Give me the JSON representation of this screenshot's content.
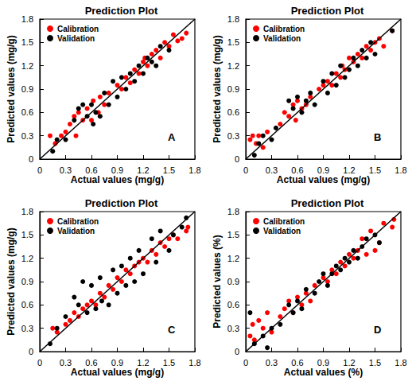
{
  "chart_data": [
    {
      "type": "scatter",
      "title": "Prediction Plot",
      "annotation": "A",
      "x_label": "Actual values (mg/g)",
      "y_label": "Predicted values (mg/g)",
      "xlim": [
        0,
        1.8
      ],
      "ylim": [
        0,
        1.8
      ],
      "xticks": [
        0,
        0.3,
        0.6,
        0.9,
        1.2,
        1.5,
        1.8
      ],
      "yticks": [
        0,
        0.3,
        0.6,
        0.9,
        1.2,
        1.5,
        1.8
      ],
      "grid": false,
      "series": [
        {
          "name": "Calibration",
          "color": "#ff0000",
          "marker": "circle",
          "x": [
            0.12,
            0.18,
            0.25,
            0.3,
            0.35,
            0.4,
            0.42,
            0.45,
            0.5,
            0.55,
            0.6,
            0.62,
            0.68,
            0.7,
            0.75,
            0.8,
            0.9,
            0.95,
            1.0,
            1.05,
            1.1,
            1.15,
            1.2,
            1.22,
            1.25,
            1.3,
            1.35,
            1.4,
            1.45,
            1.5,
            1.55,
            1.6,
            1.65,
            1.7
          ],
          "y": [
            0.3,
            0.2,
            0.3,
            0.35,
            0.45,
            0.55,
            0.3,
            0.6,
            0.5,
            0.65,
            0.5,
            0.75,
            0.6,
            0.8,
            0.7,
            0.85,
            0.95,
            0.9,
            1.05,
            0.98,
            1.15,
            1.1,
            1.25,
            1.3,
            1.2,
            1.35,
            1.4,
            1.3,
            1.5,
            1.45,
            1.6,
            1.52,
            1.55,
            1.62
          ]
        },
        {
          "name": "Validation",
          "color": "#000000",
          "marker": "circle",
          "x": [
            0.15,
            0.2,
            0.3,
            0.4,
            0.45,
            0.5,
            0.55,
            0.6,
            0.62,
            0.65,
            0.7,
            0.75,
            0.8,
            0.85,
            0.9,
            0.95,
            1.0,
            1.05,
            1.1,
            1.15,
            1.2,
            1.25,
            1.3,
            1.35,
            1.4,
            1.5
          ],
          "y": [
            0.1,
            0.25,
            0.25,
            0.5,
            0.65,
            0.7,
            0.55,
            0.7,
            0.45,
            0.6,
            0.55,
            0.85,
            0.7,
            1.0,
            0.8,
            1.05,
            0.9,
            1.1,
            1.0,
            1.2,
            1.1,
            1.3,
            1.25,
            1.2,
            1.45,
            1.4
          ]
        },
        {
          "type": "line",
          "color": "#000000",
          "x": [
            0,
            1.8
          ],
          "y": [
            0,
            1.8
          ]
        }
      ]
    },
    {
      "type": "scatter",
      "title": "Prediction Plot",
      "annotation": "B",
      "x_label": "Actual values (mg/g)",
      "y_label": "Predicted values (mg/g)",
      "xlim": [
        0,
        1.8
      ],
      "ylim": [
        0,
        1.8
      ],
      "xticks": [
        0,
        0.3,
        0.6,
        0.9,
        1.2,
        1.5,
        1.8
      ],
      "yticks": [
        0,
        0.3,
        0.6,
        0.9,
        1.2,
        1.5,
        1.8
      ],
      "grid": false,
      "series": [
        {
          "name": "Calibration",
          "color": "#ff0000",
          "marker": "circle",
          "x": [
            0.05,
            0.08,
            0.12,
            0.15,
            0.2,
            0.25,
            0.4,
            0.45,
            0.5,
            0.55,
            0.58,
            0.6,
            0.65,
            0.7,
            0.75,
            0.85,
            0.9,
            0.95,
            1.0,
            1.05,
            1.1,
            1.12,
            1.15,
            1.2,
            1.25,
            1.3,
            1.35,
            1.4,
            1.45,
            1.5,
            1.55,
            1.6,
            1.7
          ],
          "y": [
            0.25,
            0.3,
            0.2,
            0.3,
            0.15,
            0.35,
            0.45,
            0.6,
            0.55,
            0.7,
            0.5,
            0.75,
            0.65,
            0.7,
            0.8,
            0.9,
            0.95,
            1.0,
            0.95,
            1.1,
            1.05,
            1.2,
            1.15,
            1.3,
            1.25,
            1.35,
            1.3,
            1.45,
            1.4,
            1.5,
            1.55,
            1.45,
            1.65
          ]
        },
        {
          "name": "Validation",
          "color": "#000000",
          "marker": "circle",
          "x": [
            0.1,
            0.15,
            0.2,
            0.3,
            0.35,
            0.5,
            0.55,
            0.6,
            0.65,
            0.7,
            0.75,
            0.8,
            0.9,
            0.95,
            1.0,
            1.05,
            1.1,
            1.15,
            1.2,
            1.25,
            1.3,
            1.35,
            1.4,
            1.45,
            1.5,
            1.7
          ],
          "y": [
            0.05,
            0.2,
            0.3,
            0.25,
            0.4,
            0.75,
            0.65,
            0.8,
            0.6,
            0.75,
            0.85,
            0.7,
            1.0,
            0.85,
            1.1,
            0.95,
            1.2,
            1.05,
            1.15,
            1.3,
            1.2,
            1.4,
            1.3,
            1.5,
            1.35,
            1.65
          ]
        },
        {
          "type": "line",
          "color": "#000000",
          "x": [
            0,
            1.8
          ],
          "y": [
            0,
            1.8
          ]
        }
      ]
    },
    {
      "type": "scatter",
      "title": "Prediction Plot",
      "annotation": "C",
      "x_label": "Actual values (mg/g)",
      "y_label": "Predicted values (mg/g)",
      "xlim": [
        0,
        1.8
      ],
      "ylim": [
        0,
        1.8
      ],
      "xticks": [
        0,
        0.3,
        0.6,
        0.9,
        1.2,
        1.5,
        1.8
      ],
      "yticks": [
        0,
        0.3,
        0.6,
        0.9,
        1.2,
        1.5,
        1.8
      ],
      "grid": false,
      "series": [
        {
          "name": "Calibration",
          "color": "#ff0000",
          "marker": "circle",
          "x": [
            0.15,
            0.2,
            0.3,
            0.35,
            0.4,
            0.45,
            0.5,
            0.55,
            0.6,
            0.65,
            0.7,
            0.75,
            0.8,
            0.85,
            0.9,
            0.95,
            1.0,
            1.05,
            1.1,
            1.15,
            1.2,
            1.25,
            1.3,
            1.35,
            1.4,
            1.45,
            1.5,
            1.55,
            1.6,
            1.7,
            1.72
          ],
          "y": [
            0.3,
            0.25,
            0.35,
            0.4,
            0.5,
            0.45,
            0.55,
            0.6,
            0.65,
            0.6,
            0.75,
            0.7,
            0.85,
            0.8,
            0.95,
            0.9,
            1.05,
            1.0,
            1.1,
            1.15,
            1.2,
            1.15,
            1.3,
            1.25,
            1.4,
            1.35,
            1.45,
            1.5,
            1.45,
            1.55,
            1.6
          ]
        },
        {
          "name": "Validation",
          "color": "#000000",
          "marker": "circle",
          "x": [
            0.12,
            0.2,
            0.3,
            0.4,
            0.45,
            0.5,
            0.55,
            0.6,
            0.65,
            0.7,
            0.72,
            0.8,
            0.85,
            0.9,
            0.95,
            1.0,
            1.05,
            1.1,
            1.15,
            1.2,
            1.3,
            1.35,
            1.4,
            1.5,
            1.55,
            1.65,
            1.7
          ],
          "y": [
            0.1,
            0.3,
            0.45,
            0.7,
            0.6,
            0.9,
            0.5,
            0.85,
            0.55,
            0.95,
            0.65,
            0.6,
            1.05,
            0.75,
            1.1,
            0.85,
            1.2,
            0.9,
            1.3,
            1.0,
            1.45,
            1.15,
            1.55,
            1.3,
            1.5,
            1.6,
            1.72
          ]
        },
        {
          "type": "line",
          "color": "#000000",
          "x": [
            0,
            1.8
          ],
          "y": [
            0,
            1.8
          ]
        }
      ]
    },
    {
      "type": "scatter",
      "title": "Prediction Plot",
      "annotation": "D",
      "x_label": "Actual values (%)",
      "y_label": "Predicted values (%)",
      "xlim": [
        0,
        1.8
      ],
      "ylim": [
        0,
        1.8
      ],
      "xticks": [
        0,
        0.3,
        0.6,
        0.9,
        1.2,
        1.5,
        1.8
      ],
      "yticks": [
        0,
        0.3,
        0.6,
        0.9,
        1.2,
        1.5,
        1.8
      ],
      "grid": false,
      "series": [
        {
          "name": "Calibration",
          "color": "#ff0000",
          "marker": "circle",
          "x": [
            0.05,
            0.08,
            0.1,
            0.15,
            0.2,
            0.25,
            0.3,
            0.4,
            0.45,
            0.5,
            0.55,
            0.6,
            0.65,
            0.7,
            0.75,
            0.8,
            0.9,
            0.95,
            1.0,
            1.05,
            1.1,
            1.15,
            1.2,
            1.25,
            1.3,
            1.35,
            1.4,
            1.45,
            1.5,
            1.55,
            1.6,
            1.7,
            1.72
          ],
          "y": [
            0.2,
            0.35,
            0.15,
            0.4,
            0.3,
            0.5,
            0.25,
            0.45,
            0.55,
            0.65,
            0.5,
            0.7,
            0.6,
            0.75,
            0.65,
            0.85,
            0.95,
            0.9,
            1.05,
            1.0,
            1.15,
            1.1,
            1.25,
            1.2,
            1.3,
            1.45,
            1.25,
            1.55,
            1.3,
            1.4,
            1.65,
            1.6,
            1.7
          ]
        },
        {
          "name": "Validation",
          "color": "#000000",
          "marker": "circle",
          "x": [
            0.05,
            0.1,
            0.2,
            0.25,
            0.3,
            0.4,
            0.5,
            0.55,
            0.6,
            0.65,
            0.7,
            0.8,
            0.85,
            0.9,
            0.95,
            1.0,
            1.05,
            1.1,
            1.15,
            1.2,
            1.25,
            1.3,
            1.35,
            1.4,
            1.5,
            1.55
          ],
          "y": [
            0.5,
            0.1,
            0.2,
            0.05,
            0.3,
            0.35,
            0.6,
            0.5,
            0.65,
            0.55,
            0.8,
            0.75,
            0.9,
            1.0,
            0.85,
            1.0,
            1.1,
            1.05,
            1.2,
            1.15,
            1.3,
            1.2,
            1.35,
            1.45,
            1.5,
            1.4
          ]
        },
        {
          "type": "line",
          "color": "#000000",
          "x": [
            0,
            1.8
          ],
          "y": [
            0,
            1.8
          ]
        }
      ]
    }
  ]
}
